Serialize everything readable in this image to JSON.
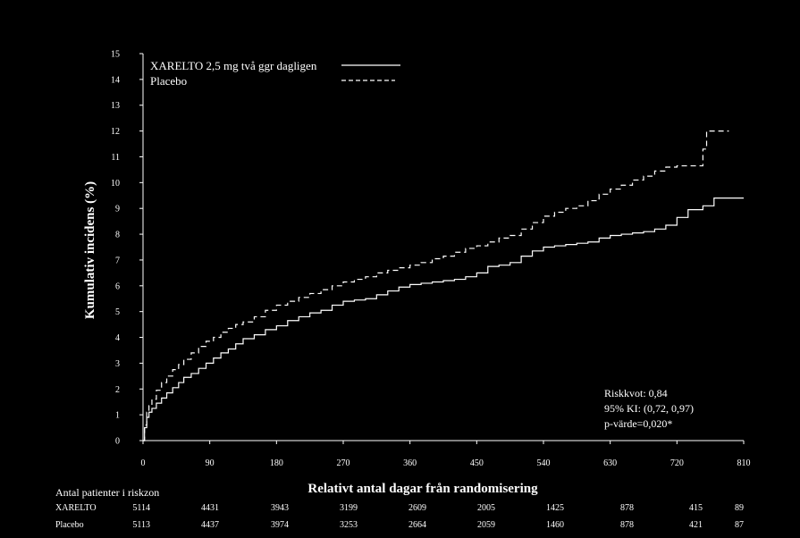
{
  "chart_data": {
    "type": "line",
    "title": "",
    "xlabel": "Relativt antal dagar från randomisering",
    "ylabel": "Kumulativ incidens (%)",
    "xlim": [
      0,
      810
    ],
    "ylim": [
      0,
      15
    ],
    "xticks": [
      0,
      90,
      180,
      270,
      360,
      450,
      540,
      630,
      720,
      810
    ],
    "yticks": [
      0,
      1,
      2,
      3,
      4,
      5,
      6,
      7,
      8,
      9,
      10,
      11,
      12,
      13,
      14,
      15
    ],
    "grid": false,
    "legend_position": "top-left",
    "series": [
      {
        "name": "XARELTO 2,5 mg två ggr dagligen",
        "style": "solid",
        "color": "#ffffff",
        "x": [
          0,
          2,
          5,
          8,
          12,
          18,
          25,
          32,
          40,
          48,
          55,
          65,
          75,
          85,
          95,
          105,
          115,
          125,
          135,
          150,
          165,
          180,
          195,
          210,
          225,
          240,
          255,
          270,
          285,
          300,
          315,
          330,
          345,
          360,
          375,
          390,
          405,
          420,
          435,
          450,
          465,
          480,
          495,
          510,
          525,
          540,
          555,
          570,
          585,
          600,
          615,
          630,
          645,
          660,
          675,
          690,
          705,
          720,
          735,
          755,
          770,
          790,
          810
        ],
        "y": [
          0,
          0.5,
          0.9,
          1.1,
          1.25,
          1.45,
          1.65,
          1.85,
          2.05,
          2.25,
          2.45,
          2.6,
          2.8,
          3.0,
          3.2,
          3.4,
          3.55,
          3.75,
          3.95,
          4.1,
          4.3,
          4.45,
          4.65,
          4.8,
          4.95,
          5.05,
          5.25,
          5.4,
          5.45,
          5.5,
          5.65,
          5.8,
          5.95,
          6.05,
          6.1,
          6.15,
          6.2,
          6.25,
          6.35,
          6.5,
          6.75,
          6.8,
          6.9,
          7.15,
          7.35,
          7.5,
          7.55,
          7.6,
          7.65,
          7.7,
          7.85,
          7.95,
          8.0,
          8.05,
          8.1,
          8.2,
          8.35,
          8.65,
          8.95,
          9.1,
          9.4,
          9.4,
          9.4
        ]
      },
      {
        "name": "Placebo",
        "style": "dashed",
        "color": "#ffffff",
        "x": [
          0,
          2,
          5,
          8,
          12,
          18,
          25,
          32,
          40,
          48,
          55,
          65,
          75,
          85,
          95,
          105,
          115,
          125,
          135,
          150,
          165,
          180,
          195,
          210,
          225,
          240,
          255,
          270,
          285,
          300,
          315,
          330,
          345,
          360,
          375,
          390,
          405,
          420,
          435,
          450,
          465,
          480,
          495,
          510,
          525,
          540,
          555,
          570,
          585,
          600,
          615,
          630,
          645,
          660,
          675,
          690,
          705,
          720,
          735,
          745,
          755,
          760,
          790
        ],
        "y": [
          0,
          0.6,
          1.1,
          1.35,
          1.6,
          1.95,
          2.25,
          2.5,
          2.75,
          2.95,
          3.15,
          3.4,
          3.65,
          3.85,
          4.0,
          4.2,
          4.35,
          4.5,
          4.6,
          4.8,
          5.05,
          5.25,
          5.4,
          5.55,
          5.7,
          5.85,
          6.0,
          6.15,
          6.25,
          6.35,
          6.5,
          6.6,
          6.7,
          6.8,
          6.9,
          7.05,
          7.15,
          7.3,
          7.45,
          7.55,
          7.7,
          7.85,
          7.95,
          8.2,
          8.45,
          8.7,
          8.85,
          9.0,
          9.1,
          9.3,
          9.55,
          9.75,
          9.9,
          10.1,
          10.25,
          10.45,
          10.6,
          10.65,
          10.65,
          10.65,
          11.3,
          12.0,
          12.0
        ]
      }
    ],
    "annotations": {
      "hazard_ratio": "Riskkvot:  0,84",
      "ci": "95% KI:  (0,72,  0,97)",
      "p_value": "p-värde=0,020*"
    },
    "risk_table": {
      "title": "Antal patienter i riskzon",
      "rows": [
        {
          "label": "XARELTO",
          "values": [
            "5114",
            "4431",
            "3943",
            "3199",
            "2609",
            "2005",
            "1425",
            "878",
            "415",
            "89"
          ]
        },
        {
          "label": "Placebo",
          "values": [
            "5113",
            "4437",
            "3974",
            "3253",
            "2664",
            "2059",
            "1460",
            "878",
            "421",
            "87"
          ]
        }
      ]
    }
  }
}
